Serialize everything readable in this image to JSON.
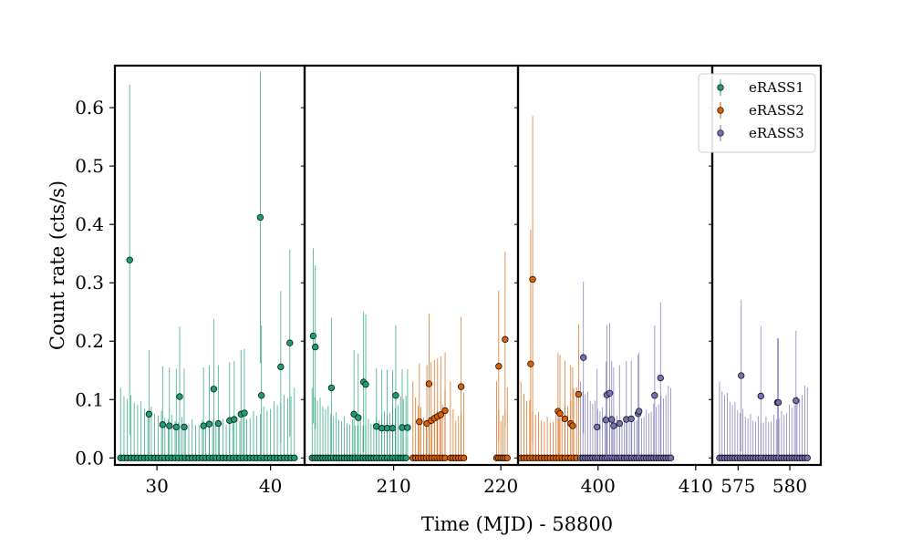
{
  "chart_data": {
    "type": "scatter",
    "title": "",
    "xlabel": "Time (MJD) - 58800",
    "ylabel": "Count rate (cts/s)",
    "ylim": [
      -0.012,
      0.672
    ],
    "yticks": [
      0.0,
      0.1,
      0.2,
      0.3,
      0.4,
      0.5,
      0.6
    ],
    "ytick_labels": [
      "0.0",
      "0.1",
      "0.2",
      "0.3",
      "0.4",
      "0.5",
      "0.6"
    ],
    "legend": {
      "position": "upper-right",
      "entries": [
        "eRASS1",
        "eRASS2",
        "eRASS3"
      ]
    },
    "series_colors": {
      "eRASS1": "#1b9e77",
      "eRASS2": "#d95f02",
      "eRASS3": "#7570b3"
    },
    "panels": [
      {
        "xlim": [
          26.3,
          43.0
        ],
        "xticks": [
          30,
          40
        ],
        "xtick_labels": [
          "30",
          "40"
        ]
      },
      {
        "xlim": [
          201.7,
          221.6
        ],
        "xticks": [
          210,
          220
        ],
        "xtick_labels": [
          "210",
          "220"
        ]
      },
      {
        "xlim": [
          391.8,
          411.7
        ],
        "xticks": [
          400,
          410
        ],
        "xtick_labels": [
          "400",
          "410"
        ]
      },
      {
        "xlim": [
          572.5,
          583.0
        ],
        "xticks": [
          575,
          580
        ],
        "xtick_labels": [
          "575",
          "580"
        ]
      }
    ],
    "series": [
      {
        "name": "eRASS1",
        "points": [
          {
            "x": 27.6,
            "y": 0.339,
            "yerr": 0.3
          },
          {
            "x": 29.3,
            "y": 0.075,
            "yerr": 0.11
          },
          {
            "x": 30.5,
            "y": 0.057,
            "yerr": 0.1
          },
          {
            "x": 31.1,
            "y": 0.055,
            "yerr": 0.1
          },
          {
            "x": 31.7,
            "y": 0.053,
            "yerr": 0.1
          },
          {
            "x": 32.0,
            "y": 0.105,
            "yerr": 0.12
          },
          {
            "x": 32.4,
            "y": 0.053,
            "yerr": 0.1
          },
          {
            "x": 34.1,
            "y": 0.055,
            "yerr": 0.1
          },
          {
            "x": 34.6,
            "y": 0.058,
            "yerr": 0.1
          },
          {
            "x": 35.0,
            "y": 0.118,
            "yerr": 0.12
          },
          {
            "x": 35.4,
            "y": 0.059,
            "yerr": 0.1
          },
          {
            "x": 36.4,
            "y": 0.064,
            "yerr": 0.1
          },
          {
            "x": 36.8,
            "y": 0.066,
            "yerr": 0.1
          },
          {
            "x": 37.4,
            "y": 0.075,
            "yerr": 0.11
          },
          {
            "x": 37.7,
            "y": 0.077,
            "yerr": 0.11
          },
          {
            "x": 39.1,
            "y": 0.412,
            "yerr": 0.25
          },
          {
            "x": 39.2,
            "y": 0.107,
            "yerr": 0.12
          },
          {
            "x": 40.9,
            "y": 0.156,
            "yerr": 0.13
          },
          {
            "x": 41.7,
            "y": 0.197,
            "yerr": 0.16
          },
          {
            "x": 202.5,
            "y": 0.209,
            "yerr": 0.15
          },
          {
            "x": 202.7,
            "y": 0.19,
            "yerr": 0.14
          },
          {
            "x": 204.2,
            "y": 0.12,
            "yerr": 0.12
          },
          {
            "x": 206.3,
            "y": 0.075,
            "yerr": 0.11
          },
          {
            "x": 206.7,
            "y": 0.069,
            "yerr": 0.11
          },
          {
            "x": 207.2,
            "y": 0.13,
            "yerr": 0.12
          },
          {
            "x": 207.4,
            "y": 0.126,
            "yerr": 0.12
          },
          {
            "x": 208.4,
            "y": 0.054,
            "yerr": 0.1
          },
          {
            "x": 208.9,
            "y": 0.051,
            "yerr": 0.1
          },
          {
            "x": 209.4,
            "y": 0.051,
            "yerr": 0.1
          },
          {
            "x": 209.9,
            "y": 0.051,
            "yerr": 0.1
          },
          {
            "x": 210.2,
            "y": 0.107,
            "yerr": 0.12
          },
          {
            "x": 210.8,
            "y": 0.052,
            "yerr": 0.1
          },
          {
            "x": 211.3,
            "y": 0.052,
            "yerr": 0.1
          }
        ],
        "zero_points": {
          "ranges": [
            [
              26.8,
              42.1,
              0.3
            ],
            [
              202.4,
              211.3,
              0.25
            ]
          ],
          "yerr": 0.1
        }
      },
      {
        "name": "eRASS2",
        "points": [
          {
            "x": 212.4,
            "y": 0.062,
            "yerr": 0.1
          },
          {
            "x": 213.1,
            "y": 0.059,
            "yerr": 0.1
          },
          {
            "x": 213.3,
            "y": 0.127,
            "yerr": 0.12
          },
          {
            "x": 213.5,
            "y": 0.064,
            "yerr": 0.1
          },
          {
            "x": 213.8,
            "y": 0.068,
            "yerr": 0.1
          },
          {
            "x": 214.1,
            "y": 0.071,
            "yerr": 0.1
          },
          {
            "x": 214.4,
            "y": 0.074,
            "yerr": 0.1
          },
          {
            "x": 214.8,
            "y": 0.081,
            "yerr": 0.1
          },
          {
            "x": 216.3,
            "y": 0.122,
            "yerr": 0.12
          },
          {
            "x": 219.8,
            "y": 0.157,
            "yerr": 0.13
          },
          {
            "x": 220.4,
            "y": 0.203,
            "yerr": 0.15
          },
          {
            "x": 393.1,
            "y": 0.161,
            "yerr": 0.23
          },
          {
            "x": 393.3,
            "y": 0.306,
            "yerr": 0.28
          },
          {
            "x": 395.9,
            "y": 0.08,
            "yerr": 0.1
          },
          {
            "x": 396.1,
            "y": 0.076,
            "yerr": 0.1
          },
          {
            "x": 396.6,
            "y": 0.067,
            "yerr": 0.1
          },
          {
            "x": 397.2,
            "y": 0.059,
            "yerr": 0.1
          },
          {
            "x": 397.4,
            "y": 0.055,
            "yerr": 0.1
          },
          {
            "x": 398.0,
            "y": 0.109,
            "yerr": 0.12
          }
        ],
        "zero_points": {
          "ranges": [
            [
              211.8,
              215.0,
              0.25
            ],
            [
              215.3,
              216.6,
              0.25
            ],
            [
              219.6,
              220.6,
              0.2
            ],
            [
              392.1,
              397.8,
              0.3
            ]
          ],
          "yerr": 0.11
        }
      },
      {
        "name": "eRASS3",
        "points": [
          {
            "x": 398.5,
            "y": 0.172,
            "yerr": 0.13
          },
          {
            "x": 399.9,
            "y": 0.053,
            "yerr": 0.1
          },
          {
            "x": 400.8,
            "y": 0.065,
            "yerr": 0.1
          },
          {
            "x": 400.9,
            "y": 0.108,
            "yerr": 0.12
          },
          {
            "x": 401.2,
            "y": 0.111,
            "yerr": 0.12
          },
          {
            "x": 401.4,
            "y": 0.066,
            "yerr": 0.1
          },
          {
            "x": 401.6,
            "y": 0.055,
            "yerr": 0.1
          },
          {
            "x": 402.2,
            "y": 0.059,
            "yerr": 0.1
          },
          {
            "x": 402.9,
            "y": 0.066,
            "yerr": 0.1
          },
          {
            "x": 403.4,
            "y": 0.067,
            "yerr": 0.1
          },
          {
            "x": 404.1,
            "y": 0.076,
            "yerr": 0.1
          },
          {
            "x": 404.2,
            "y": 0.08,
            "yerr": 0.1
          },
          {
            "x": 405.8,
            "y": 0.107,
            "yerr": 0.12
          },
          {
            "x": 406.4,
            "y": 0.137,
            "yerr": 0.13
          },
          {
            "x": 575.3,
            "y": 0.141,
            "yerr": 0.13
          },
          {
            "x": 577.2,
            "y": 0.106,
            "yerr": 0.12
          },
          {
            "x": 578.8,
            "y": 0.095,
            "yerr": 0.11
          },
          {
            "x": 578.9,
            "y": 0.095,
            "yerr": 0.11
          },
          {
            "x": 580.6,
            "y": 0.098,
            "yerr": 0.12
          }
        ],
        "zero_points": {
          "ranges": [
            [
              398.2,
              407.5,
              0.25
            ],
            [
              573.2,
              581.7,
              0.25
            ]
          ],
          "yerr": 0.11
        }
      }
    ]
  }
}
